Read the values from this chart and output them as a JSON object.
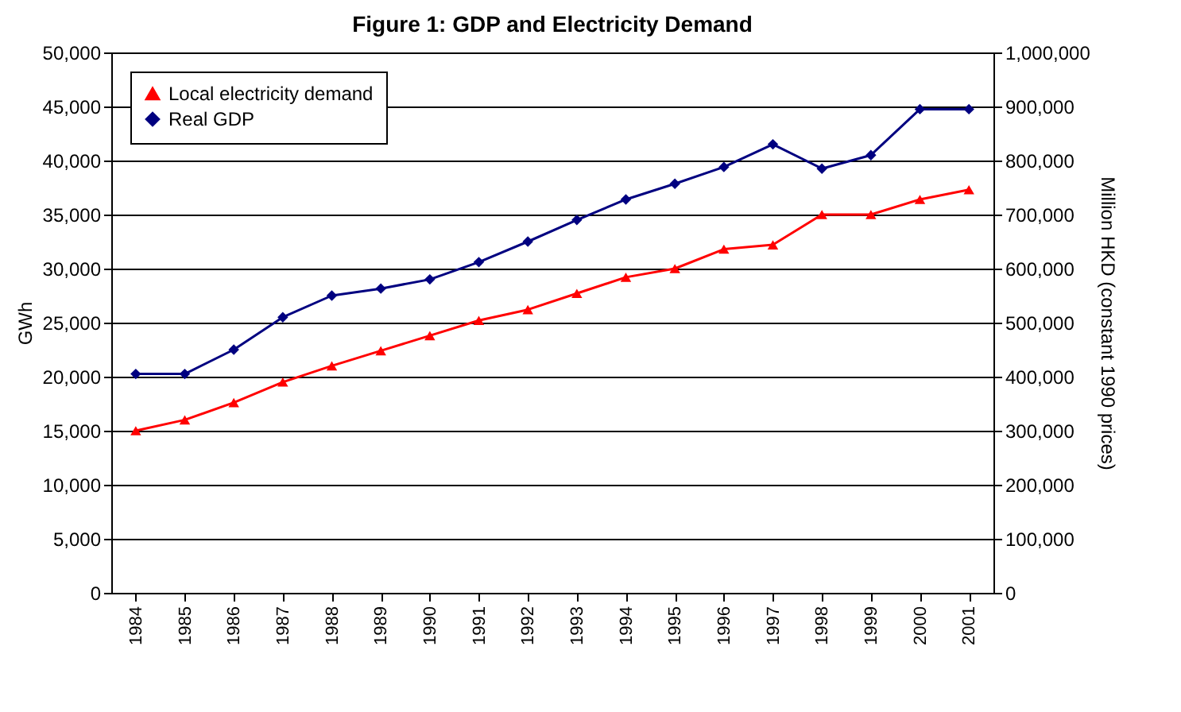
{
  "chart_data": {
    "type": "line",
    "title": "Figure 1: GDP and Electricity Demand",
    "ylabel": "GWh",
    "y2label": "Million HKD (constant 1990 prices)",
    "categories": [
      "1984",
      "1985",
      "1986",
      "1987",
      "1988",
      "1989",
      "1990",
      "1991",
      "1992",
      "1993",
      "1994",
      "1995",
      "1996",
      "1997",
      "1998",
      "1999",
      "2000",
      "2001"
    ],
    "series": [
      {
        "name": "Local electricity demand",
        "color": "#ff0000",
        "marker": "triangle",
        "values": [
          15000,
          16000,
          17600,
          19500,
          21000,
          22400,
          23800,
          25200,
          26200,
          27700,
          29200,
          30000,
          31800,
          32200,
          35000,
          35000,
          36400,
          37300
        ]
      },
      {
        "name": "Real GDP",
        "color": "#000080",
        "marker": "diamond",
        "axis": "y2",
        "values": [
          405000,
          405000,
          450000,
          510000,
          550000,
          563000,
          580000,
          612000,
          650000,
          690000,
          728000,
          757000,
          788000,
          830000,
          785000,
          810000,
          895000,
          895000
        ]
      }
    ],
    "ylim": [
      0,
      50000
    ],
    "yticks": [
      0,
      {
        "value": 5000,
        "label": "5,000"
      },
      {
        "value": 10000,
        "label": "10,000"
      },
      {
        "value": 15000,
        "label": "15,000"
      },
      {
        "value": 20000,
        "label": "20,000"
      },
      {
        "value": 25000,
        "label": "25,000"
      },
      {
        "value": 30000,
        "label": "30,000"
      },
      {
        "value": 35000,
        "label": "35,000"
      },
      {
        "value": 40000,
        "label": "40,000"
      },
      {
        "value": 45000,
        "label": "45,000"
      },
      {
        "value": 50000,
        "label": "50,000"
      }
    ],
    "y2lim": [
      0,
      1000000
    ],
    "y2ticks": [
      0,
      {
        "value": 100000,
        "label": "100,000"
      },
      {
        "value": 200000,
        "label": "200,000"
      },
      {
        "value": 300000,
        "label": "300,000"
      },
      {
        "value": 400000,
        "label": "400,000"
      },
      {
        "value": 500000,
        "label": "500,000"
      },
      {
        "value": 600000,
        "label": "600,000"
      },
      {
        "value": 700000,
        "label": "700,000"
      },
      {
        "value": 800000,
        "label": "800,000"
      },
      {
        "value": 900000,
        "label": "900,000"
      },
      {
        "value": 1000000,
        "label": "1,000,000"
      }
    ],
    "grid": "y",
    "legend": "top left"
  }
}
